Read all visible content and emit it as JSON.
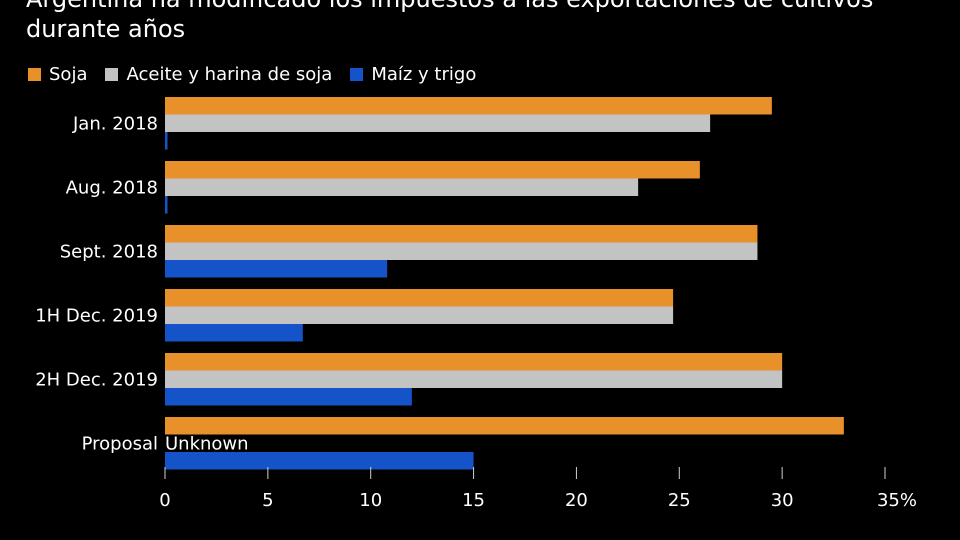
{
  "chart_data": {
    "type": "bar",
    "orientation": "horizontal",
    "title": "Argentina ha modificado los impuestos a las exportaciones de cultivos durante años",
    "categories": [
      "Jan. 2018",
      "Aug. 2018",
      "Sept. 2018",
      "1H Dec. 2019",
      "2H Dec. 2019",
      "Proposal"
    ],
    "series": [
      {
        "name": "Soja",
        "color": "#e8902a",
        "values": [
          29.5,
          26,
          28.8,
          24.7,
          30,
          33
        ]
      },
      {
        "name": "Aceite y harina de soja",
        "color": "#c3c3c3",
        "values": [
          26.5,
          23,
          28.8,
          24.7,
          30,
          null
        ]
      },
      {
        "name": "Maíz y trigo",
        "color": "#1453c8",
        "values": [
          0.1,
          0.1,
          10.8,
          6.7,
          12,
          15
        ]
      }
    ],
    "annotations": [
      {
        "category": "Proposal",
        "series": "Aceite y harina de soja",
        "text": "Unknown"
      }
    ],
    "xlim": [
      0,
      35
    ],
    "xticks": [
      "0",
      "5",
      "10",
      "15",
      "20",
      "25",
      "30",
      "35%"
    ],
    "grid": false,
    "legend_position": "top-left"
  }
}
